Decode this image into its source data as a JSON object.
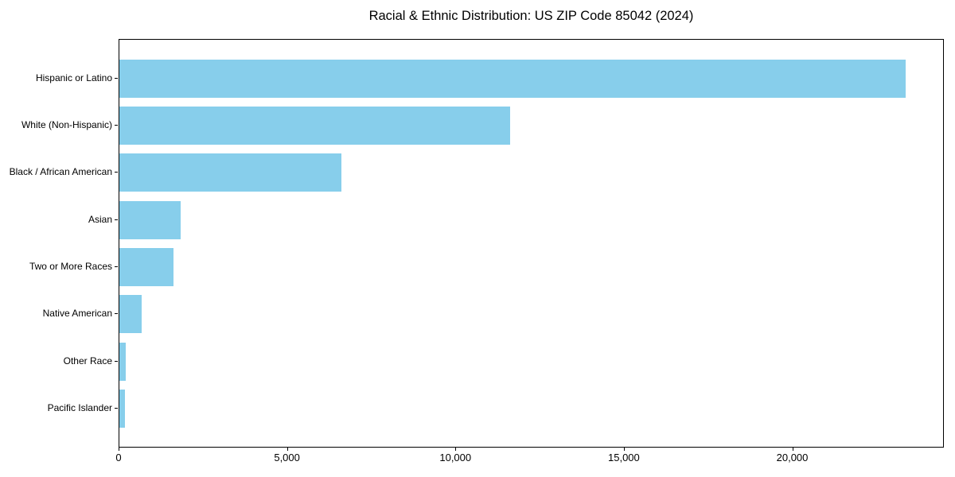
{
  "chart_data": {
    "type": "bar",
    "orientation": "horizontal",
    "title": "Racial & Ethnic Distribution: US ZIP Code 85042 (2024)",
    "categories": [
      "Hispanic or Latino",
      "White (Non-Hispanic)",
      "Black / African American",
      "Asian",
      "Two or More Races",
      "Native American",
      "Other Race",
      "Pacific Islander"
    ],
    "values": [
      23350,
      11600,
      6600,
      1820,
      1600,
      650,
      200,
      170
    ],
    "xlabel": "",
    "ylabel": "",
    "xlim": [
      0,
      24500
    ],
    "x_ticks": [
      0,
      5000,
      10000,
      15000,
      20000
    ],
    "x_tick_labels": [
      "0",
      "5,000",
      "10,000",
      "15,000",
      "20,000"
    ],
    "bar_color": "#87CEEB",
    "spine_color": "#000000",
    "text_color": "#000000",
    "background_color": "#ffffff",
    "grid": false,
    "legend": null
  }
}
